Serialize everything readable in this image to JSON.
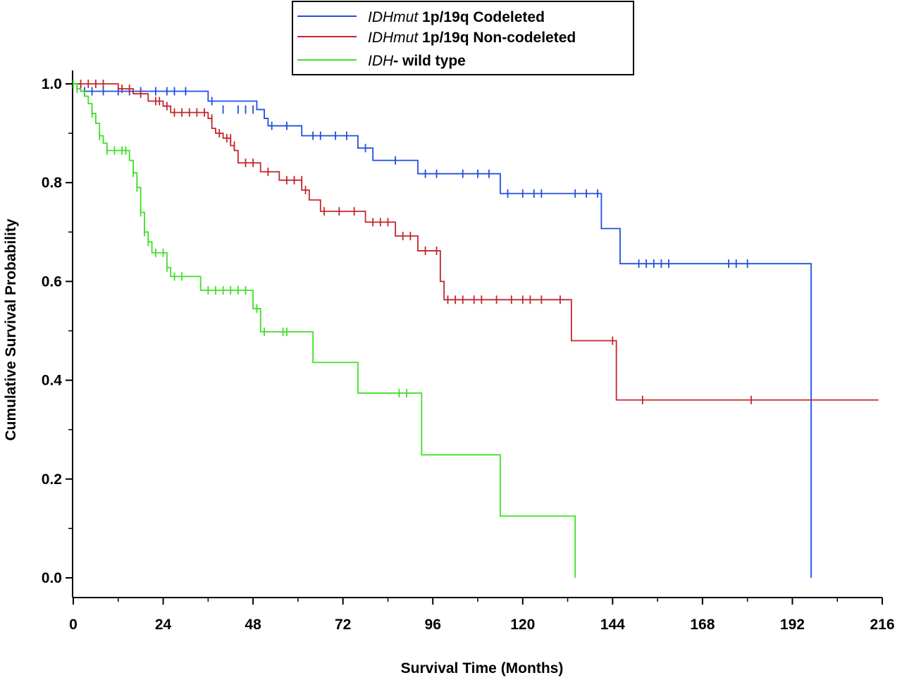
{
  "chart_data": {
    "type": "line",
    "subtype": "kaplan-meier",
    "xlabel": "Survival Time (Months)",
    "ylabel": "Cumulative Survival Probability",
    "xlim": [
      0,
      216
    ],
    "ylim": [
      0.0,
      1.0
    ],
    "x_ticks": [
      "0",
      "24",
      "48",
      "72",
      "96",
      "120",
      "144",
      "168",
      "192",
      "216"
    ],
    "y_ticks": [
      "0.0",
      "0.2",
      "0.4",
      "0.6",
      "0.8",
      "1.0"
    ],
    "grid": false,
    "legend_position": "top-center",
    "series": [
      {
        "name_italic": "IDHmut",
        "name_rest": " 1p/19q Codeleted",
        "color": "#1f4fe0",
        "steps": [
          [
            0,
            1.0
          ],
          [
            2,
            0.985
          ],
          [
            36,
            0.965
          ],
          [
            49,
            0.948
          ],
          [
            51,
            0.93
          ],
          [
            52,
            0.915
          ],
          [
            61,
            0.895
          ],
          [
            76,
            0.87
          ],
          [
            80,
            0.845
          ],
          [
            92,
            0.818
          ],
          [
            114,
            0.778
          ],
          [
            141,
            0.707
          ],
          [
            146,
            0.636
          ],
          [
            197,
            0.0
          ]
        ],
        "censored": [
          [
            3,
            0.985
          ],
          [
            5,
            0.985
          ],
          [
            8,
            0.985
          ],
          [
            12,
            0.985
          ],
          [
            15,
            0.985
          ],
          [
            18,
            0.985
          ],
          [
            22,
            0.985
          ],
          [
            25,
            0.985
          ],
          [
            27,
            0.985
          ],
          [
            30,
            0.985
          ],
          [
            37,
            0.965
          ],
          [
            40,
            0.948
          ],
          [
            44,
            0.948
          ],
          [
            46,
            0.948
          ],
          [
            48,
            0.948
          ],
          [
            53,
            0.915
          ],
          [
            57,
            0.915
          ],
          [
            64,
            0.895
          ],
          [
            66,
            0.895
          ],
          [
            70,
            0.895
          ],
          [
            73,
            0.895
          ],
          [
            78,
            0.87
          ],
          [
            86,
            0.845
          ],
          [
            94,
            0.818
          ],
          [
            97,
            0.818
          ],
          [
            104,
            0.818
          ],
          [
            108,
            0.818
          ],
          [
            111,
            0.818
          ],
          [
            116,
            0.778
          ],
          [
            120,
            0.778
          ],
          [
            123,
            0.778
          ],
          [
            125,
            0.778
          ],
          [
            134,
            0.778
          ],
          [
            137,
            0.778
          ],
          [
            140,
            0.778
          ],
          [
            151,
            0.636
          ],
          [
            153,
            0.636
          ],
          [
            155,
            0.636
          ],
          [
            157,
            0.636
          ],
          [
            159,
            0.636
          ],
          [
            175,
            0.636
          ],
          [
            177,
            0.636
          ],
          [
            180,
            0.636
          ]
        ]
      },
      {
        "name_italic": "IDHmut",
        "name_rest": " 1p/19q Non-codeleted",
        "color": "#c0272d",
        "steps": [
          [
            0,
            1.0
          ],
          [
            12,
            0.99
          ],
          [
            16,
            0.98
          ],
          [
            20,
            0.965
          ],
          [
            24,
            0.955
          ],
          [
            26,
            0.942
          ],
          [
            36,
            0.93
          ],
          [
            37,
            0.91
          ],
          [
            38,
            0.9
          ],
          [
            40,
            0.89
          ],
          [
            42,
            0.875
          ],
          [
            43,
            0.865
          ],
          [
            44,
            0.84
          ],
          [
            50,
            0.822
          ],
          [
            55,
            0.805
          ],
          [
            61,
            0.785
          ],
          [
            63,
            0.765
          ],
          [
            66,
            0.742
          ],
          [
            78,
            0.72
          ],
          [
            86,
            0.692
          ],
          [
            92,
            0.662
          ],
          [
            98,
            0.6
          ],
          [
            99,
            0.563
          ],
          [
            133,
            0.48
          ],
          [
            145,
            0.36
          ]
        ],
        "censored": [
          [
            2,
            1.0
          ],
          [
            4,
            1.0
          ],
          [
            6,
            1.0
          ],
          [
            8,
            1.0
          ],
          [
            13,
            0.99
          ],
          [
            15,
            0.99
          ],
          [
            18,
            0.98
          ],
          [
            22,
            0.965
          ],
          [
            23,
            0.965
          ],
          [
            25,
            0.955
          ],
          [
            27,
            0.942
          ],
          [
            29,
            0.942
          ],
          [
            31,
            0.942
          ],
          [
            33,
            0.942
          ],
          [
            35,
            0.942
          ],
          [
            37,
            0.93
          ],
          [
            39,
            0.9
          ],
          [
            41,
            0.89
          ],
          [
            42,
            0.89
          ],
          [
            43,
            0.875
          ],
          [
            46,
            0.84
          ],
          [
            48,
            0.84
          ],
          [
            52,
            0.822
          ],
          [
            57,
            0.805
          ],
          [
            59,
            0.805
          ],
          [
            61,
            0.805
          ],
          [
            62,
            0.785
          ],
          [
            67,
            0.742
          ],
          [
            71,
            0.742
          ],
          [
            75,
            0.742
          ],
          [
            80,
            0.72
          ],
          [
            82,
            0.72
          ],
          [
            84,
            0.72
          ],
          [
            88,
            0.692
          ],
          [
            90,
            0.692
          ],
          [
            94,
            0.662
          ],
          [
            97,
            0.662
          ],
          [
            100,
            0.563
          ],
          [
            102,
            0.563
          ],
          [
            104,
            0.563
          ],
          [
            107,
            0.563
          ],
          [
            109,
            0.563
          ],
          [
            113,
            0.563
          ],
          [
            117,
            0.563
          ],
          [
            120,
            0.563
          ],
          [
            122,
            0.563
          ],
          [
            125,
            0.563
          ],
          [
            130,
            0.563
          ],
          [
            144,
            0.48
          ],
          [
            152,
            0.36
          ],
          [
            181,
            0.36
          ]
        ],
        "end_x": 215
      },
      {
        "name_italic": "IDH",
        "name_rest": "- wild type",
        "color": "#3fe026",
        "steps": [
          [
            0,
            1.0
          ],
          [
            1,
            0.99
          ],
          [
            2,
            0.985
          ],
          [
            3,
            0.975
          ],
          [
            4,
            0.96
          ],
          [
            5,
            0.94
          ],
          [
            6,
            0.92
          ],
          [
            7,
            0.895
          ],
          [
            8,
            0.88
          ],
          [
            9,
            0.865
          ],
          [
            15,
            0.845
          ],
          [
            16,
            0.82
          ],
          [
            17,
            0.79
          ],
          [
            18,
            0.74
          ],
          [
            19,
            0.7
          ],
          [
            20,
            0.68
          ],
          [
            21,
            0.658
          ],
          [
            25,
            0.628
          ],
          [
            26,
            0.61
          ],
          [
            34,
            0.582
          ],
          [
            48,
            0.545
          ],
          [
            50,
            0.498
          ],
          [
            64,
            0.436
          ],
          [
            76,
            0.374
          ],
          [
            93,
            0.249
          ],
          [
            114,
            0.125
          ],
          [
            134,
            0.0
          ]
        ],
        "censored": [
          [
            0,
            1.0
          ],
          [
            1,
            0.99
          ],
          [
            5,
            0.94
          ],
          [
            7,
            0.895
          ],
          [
            9,
            0.865
          ],
          [
            11,
            0.865
          ],
          [
            13,
            0.865
          ],
          [
            14,
            0.865
          ],
          [
            16,
            0.82
          ],
          [
            17,
            0.79
          ],
          [
            18,
            0.74
          ],
          [
            19,
            0.7
          ],
          [
            20,
            0.68
          ],
          [
            22,
            0.658
          ],
          [
            24,
            0.658
          ],
          [
            25,
            0.628
          ],
          [
            27,
            0.61
          ],
          [
            29,
            0.61
          ],
          [
            36,
            0.582
          ],
          [
            38,
            0.582
          ],
          [
            40,
            0.582
          ],
          [
            42,
            0.582
          ],
          [
            44,
            0.582
          ],
          [
            46,
            0.582
          ],
          [
            49,
            0.545
          ],
          [
            51,
            0.498
          ],
          [
            56,
            0.498
          ],
          [
            57,
            0.498
          ],
          [
            87,
            0.374
          ],
          [
            89,
            0.374
          ]
        ]
      }
    ]
  }
}
